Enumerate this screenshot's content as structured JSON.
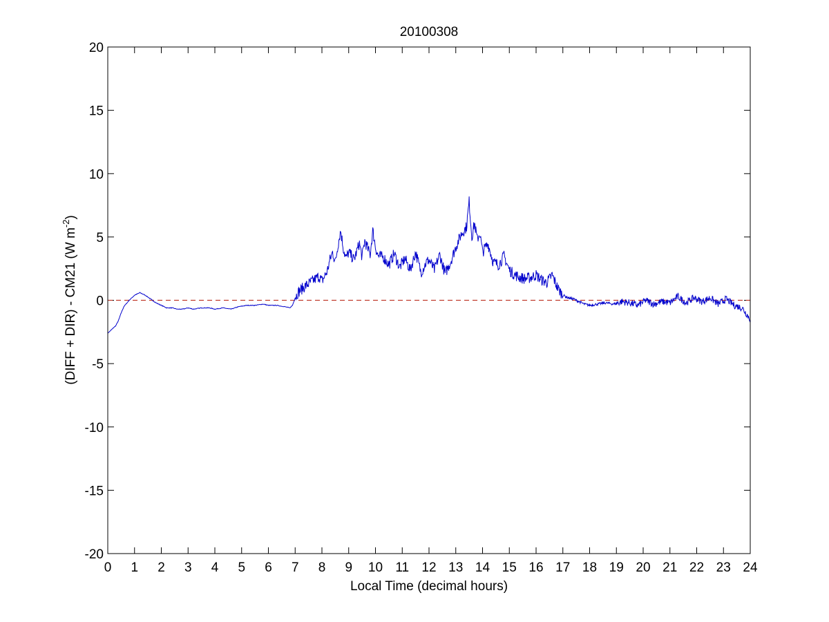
{
  "chart_data": {
    "type": "line",
    "title": "20100308",
    "xlabel": "Local Time (decimal hours)",
    "ylabel": {
      "prefix": "(DIFF + DIR) - CM21 (W m",
      "superscript": "-2",
      "suffix": ")"
    },
    "xlim": [
      0,
      24
    ],
    "ylim": [
      -20,
      20
    ],
    "xticks": [
      0,
      1,
      2,
      3,
      4,
      5,
      6,
      7,
      8,
      9,
      10,
      11,
      12,
      13,
      14,
      15,
      16,
      17,
      18,
      19,
      20,
      21,
      22,
      23,
      24
    ],
    "yticks": [
      -20,
      -15,
      -10,
      -5,
      0,
      5,
      10,
      15,
      20
    ],
    "grid": false,
    "reference_line": {
      "y": 0,
      "style": "dashed",
      "color": "#c0392b"
    },
    "series": [
      {
        "color": "#0000cc",
        "x": [
          0,
          0.1,
          0.2,
          0.3,
          0.4,
          0.5,
          0.6,
          0.8,
          1.0,
          1.2,
          1.4,
          1.6,
          1.8,
          2.0,
          2.2,
          2.4,
          2.6,
          2.8,
          3.0,
          3.2,
          3.5,
          3.8,
          4.0,
          4.3,
          4.6,
          4.9,
          5.2,
          5.5,
          5.8,
          6.0,
          6.3,
          6.6,
          6.8,
          6.9,
          7.0,
          7.1,
          7.3,
          7.5,
          7.7,
          7.9,
          8.0,
          8.2,
          8.3,
          8.4,
          8.5,
          8.6,
          8.7,
          8.8,
          8.9,
          9.0,
          9.2,
          9.4,
          9.5,
          9.6,
          9.8,
          9.9,
          10.0,
          10.1,
          10.3,
          10.5,
          10.7,
          10.9,
          11.1,
          11.3,
          11.5,
          11.7,
          11.9,
          12.0,
          12.2,
          12.4,
          12.6,
          12.8,
          13.0,
          13.2,
          13.4,
          13.5,
          13.6,
          13.7,
          13.8,
          13.9,
          14.0,
          14.2,
          14.4,
          14.6,
          14.8,
          15.0,
          15.2,
          15.4,
          15.6,
          15.8,
          16.0,
          16.2,
          16.4,
          16.6,
          16.8,
          17.0,
          17.2,
          17.4,
          17.6,
          17.8,
          18.0,
          18.3,
          18.6,
          18.9,
          19.2,
          19.5,
          19.8,
          20.1,
          20.4,
          20.7,
          21.0,
          21.3,
          21.6,
          21.9,
          22.2,
          22.5,
          22.8,
          23.1,
          23.4,
          23.7,
          24.0
        ],
        "y": [
          -2.6,
          -2.4,
          -2.2,
          -2.0,
          -1.6,
          -1.0,
          -0.5,
          0.0,
          0.4,
          0.6,
          0.4,
          0.1,
          -0.2,
          -0.4,
          -0.6,
          -0.6,
          -0.7,
          -0.7,
          -0.6,
          -0.7,
          -0.6,
          -0.6,
          -0.7,
          -0.6,
          -0.7,
          -0.5,
          -0.4,
          -0.4,
          -0.3,
          -0.4,
          -0.4,
          -0.5,
          -0.6,
          -0.4,
          0.2,
          0.6,
          1.0,
          1.3,
          1.6,
          1.9,
          1.5,
          2.3,
          3.2,
          3.8,
          3.0,
          4.4,
          5.5,
          4.1,
          3.3,
          3.8,
          3.2,
          4.5,
          3.4,
          4.7,
          3.6,
          5.5,
          4.2,
          3.5,
          3.4,
          2.8,
          3.7,
          2.6,
          3.3,
          2.4,
          3.8,
          2.2,
          3.0,
          3.2,
          2.4,
          3.6,
          2.1,
          3.0,
          4.2,
          5.2,
          5.8,
          7.8,
          5.0,
          6.1,
          4.8,
          5.3,
          3.8,
          4.5,
          3.0,
          2.8,
          3.5,
          2.4,
          2.0,
          1.8,
          1.7,
          1.8,
          2.0,
          1.6,
          1.4,
          2.0,
          1.0,
          0.4,
          0.2,
          0.1,
          -0.1,
          -0.3,
          -0.4,
          -0.3,
          -0.2,
          -0.3,
          -0.1,
          -0.2,
          -0.4,
          0.0,
          -0.3,
          -0.1,
          -0.2,
          0.3,
          -0.2,
          0.2,
          -0.1,
          0.2,
          -0.3,
          0.1,
          -0.4,
          -0.6,
          -1.5
        ]
      }
    ]
  }
}
